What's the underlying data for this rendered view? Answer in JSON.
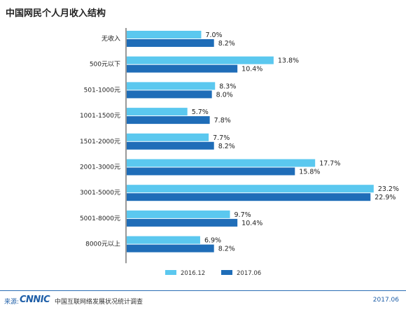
{
  "chart_data": {
    "type": "bar",
    "orientation": "horizontal",
    "title": "中国网民个人月收入结构",
    "categories": [
      "无收入",
      "500元以下",
      "501-1000元",
      "1001-1500元",
      "1501-2000元",
      "2001-3000元",
      "3001-5000元",
      "5001-8000元",
      "8000元以上"
    ],
    "series": [
      {
        "name": "2016.12",
        "values": [
          7.0,
          13.8,
          8.3,
          5.7,
          7.7,
          17.7,
          23.2,
          9.7,
          6.9
        ],
        "labels": [
          "7.0%",
          "13.8%",
          "8.3%",
          "5.7%",
          "7.7%",
          "17.7%",
          "23.2%",
          "9.7%",
          "6.9%"
        ]
      },
      {
        "name": "2017.06",
        "values": [
          8.2,
          10.4,
          8.0,
          7.8,
          8.2,
          15.8,
          22.9,
          10.4,
          8.2
        ],
        "labels": [
          "8.2%",
          "10.4%",
          "8.0%",
          "7.8%",
          "8.2%",
          "15.8%",
          "22.9%",
          "10.4%",
          "8.2%"
        ]
      }
    ],
    "xlim": [
      0,
      24
    ],
    "grid": false,
    "legend_position": "bottom"
  },
  "colors": {
    "series_2016": "#5bc8ef",
    "series_2017": "#1f6db8",
    "brand": "#1f5fa8"
  },
  "footer": {
    "source_prefix": "来源:",
    "logo": "CNNIC",
    "source": "中国互联网络发展状况统计调查",
    "date": "2017.06"
  }
}
